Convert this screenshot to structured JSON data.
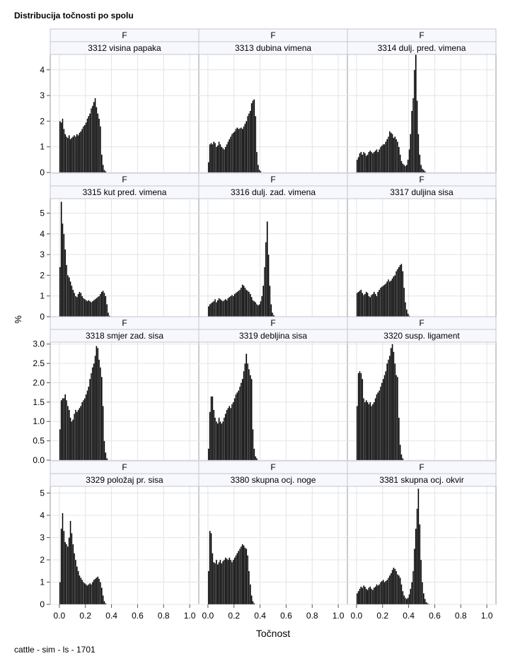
{
  "title": "Distribucija točnosti po spolu",
  "footnote": "cattle - sim - ls - 1701",
  "chart_data": {
    "type": "bar",
    "layout": "panel grid 4 rows x 3 columns, shared x axis",
    "xlabel": "Točnost",
    "ylabel": "%",
    "xlim": [
      -0.07,
      1.07
    ],
    "xticks": [
      "0.0",
      "0.2",
      "0.4",
      "0.6",
      "0.8",
      "1.0"
    ],
    "grid": true,
    "rows": [
      {
        "ylim": [
          0,
          4.6
        ],
        "yticks": [
          "0",
          "1",
          "2",
          "3",
          "4"
        ],
        "ytick_values": [
          0,
          1,
          2,
          3,
          4
        ]
      },
      {
        "ylim": [
          0,
          5.7
        ],
        "yticks": [
          "0",
          "1",
          "2",
          "3",
          "4",
          "5"
        ],
        "ytick_values": [
          0,
          1,
          2,
          3,
          4,
          5
        ]
      },
      {
        "ylim": [
          0,
          3.05
        ],
        "yticks": [
          "0.0",
          "0.5",
          "1.0",
          "1.5",
          "2.0",
          "2.5",
          "3.0"
        ],
        "ytick_values": [
          0,
          0.5,
          1,
          1.5,
          2,
          2.5,
          3
        ]
      },
      {
        "ylim": [
          0,
          5.3
        ],
        "yticks": [
          "0",
          "1",
          "2",
          "3",
          "4",
          "5"
        ],
        "ytick_values": [
          0,
          1,
          2,
          3,
          4,
          5
        ]
      }
    ],
    "panels": [
      {
        "group": "F",
        "label": "3312 visina papaka",
        "x_start": 0.0,
        "bin_width": 0.01,
        "values": [
          2.0,
          1.95,
          2.1,
          1.7,
          1.5,
          1.4,
          1.35,
          1.45,
          1.3,
          1.35,
          1.4,
          1.45,
          1.4,
          1.5,
          1.45,
          1.55,
          1.6,
          1.7,
          1.8,
          1.85,
          1.95,
          2.1,
          2.2,
          2.3,
          2.5,
          2.6,
          2.75,
          2.9,
          2.55,
          2.3,
          2.1,
          1.8,
          0.7,
          0.3,
          0.1,
          0.05
        ]
      },
      {
        "group": "F",
        "label": "3313 dubina vimena",
        "x_start": 0.0,
        "bin_width": 0.01,
        "values": [
          0.4,
          1.1,
          1.15,
          1.1,
          1.2,
          1.15,
          1.0,
          1.05,
          1.2,
          1.1,
          1.0,
          0.95,
          0.9,
          1.0,
          1.1,
          1.2,
          1.3,
          1.4,
          1.5,
          1.55,
          1.6,
          1.7,
          1.75,
          1.7,
          1.72,
          1.75,
          1.7,
          1.8,
          1.9,
          2.0,
          2.2,
          2.3,
          2.4,
          2.7,
          2.8,
          2.85,
          2.2,
          0.8,
          0.3,
          0.1,
          0.05
        ]
      },
      {
        "group": "F",
        "label": "3314 dulj. pred. vimena",
        "x_start": 0.0,
        "bin_width": 0.01,
        "values": [
          0.5,
          0.6,
          0.75,
          0.8,
          0.7,
          0.8,
          0.75,
          0.65,
          0.7,
          0.8,
          0.85,
          0.8,
          0.75,
          0.8,
          0.85,
          0.9,
          0.8,
          0.9,
          1.0,
          1.05,
          1.1,
          1.1,
          1.2,
          1.3,
          1.4,
          1.6,
          1.55,
          1.5,
          1.35,
          1.4,
          1.3,
          1.2,
          1.0,
          0.7,
          0.45,
          0.35,
          0.3,
          0.25,
          0.3,
          0.5,
          0.9,
          1.5,
          2.4,
          2.9,
          4.0,
          4.6,
          2.8,
          1.5,
          0.7,
          0.3,
          0.15,
          0.1,
          0.05
        ]
      },
      {
        "group": "F",
        "label": "3315 kut pred. vimena",
        "x_start": 0.0,
        "bin_width": 0.01,
        "values": [
          2.4,
          5.55,
          4.5,
          4.0,
          3.25,
          2.5,
          2.0,
          1.9,
          1.7,
          1.5,
          1.3,
          1.15,
          1.0,
          0.95,
          1.1,
          1.2,
          1.15,
          1.0,
          0.9,
          0.85,
          0.8,
          0.75,
          0.8,
          0.75,
          0.7,
          0.75,
          0.8,
          0.85,
          0.9,
          0.95,
          1.0,
          1.1,
          1.2,
          1.25,
          1.15,
          1.0,
          0.6,
          0.2,
          0.05
        ]
      },
      {
        "group": "F",
        "label": "3316 dulj. zad. vimena",
        "x_start": 0.0,
        "bin_width": 0.01,
        "values": [
          0.5,
          0.6,
          0.65,
          0.7,
          0.75,
          0.85,
          0.7,
          0.8,
          0.9,
          0.85,
          0.8,
          0.75,
          0.8,
          0.85,
          0.8,
          0.9,
          0.95,
          1.0,
          1.05,
          1.0,
          1.1,
          1.15,
          1.2,
          1.25,
          1.3,
          1.4,
          1.55,
          1.5,
          1.4,
          1.3,
          1.25,
          1.2,
          1.1,
          0.95,
          0.8,
          0.75,
          0.7,
          0.6,
          0.55,
          0.6,
          0.75,
          1.0,
          1.5,
          2.4,
          3.6,
          4.6,
          3.0,
          1.5,
          0.6,
          0.2,
          0.08
        ]
      },
      {
        "group": "F",
        "label": "3317 duljina sisa",
        "x_start": 0.0,
        "bin_width": 0.01,
        "values": [
          1.15,
          1.2,
          1.25,
          1.3,
          1.15,
          1.05,
          1.1,
          1.2,
          1.15,
          1.0,
          0.95,
          1.05,
          1.1,
          1.2,
          1.1,
          1.0,
          1.2,
          1.3,
          1.4,
          1.45,
          1.5,
          1.55,
          1.6,
          1.7,
          1.8,
          1.7,
          1.75,
          1.85,
          1.95,
          2.0,
          2.2,
          2.3,
          2.4,
          2.5,
          2.55,
          2.2,
          1.4,
          0.7,
          0.35,
          0.15,
          0.05
        ]
      },
      {
        "group": "F",
        "label": "3318 smjer zad. sisa",
        "x_start": 0.0,
        "bin_width": 0.01,
        "values": [
          0.8,
          1.55,
          1.6,
          1.6,
          1.7,
          1.55,
          1.4,
          1.3,
          1.1,
          1.0,
          1.05,
          1.2,
          1.3,
          1.25,
          1.3,
          1.35,
          1.4,
          1.5,
          1.55,
          1.6,
          1.7,
          1.8,
          1.9,
          2.1,
          2.25,
          2.4,
          2.5,
          2.7,
          2.95,
          2.9,
          2.6,
          2.4,
          2.15,
          1.4,
          0.5,
          0.2,
          0.05
        ]
      },
      {
        "group": "F",
        "label": "3319 debljina sisa",
        "x_start": 0.0,
        "bin_width": 0.01,
        "values": [
          0.3,
          1.25,
          1.65,
          1.65,
          1.3,
          1.1,
          1.0,
          0.95,
          1.1,
          1.0,
          0.95,
          1.0,
          1.1,
          1.2,
          1.3,
          1.35,
          1.4,
          1.35,
          1.45,
          1.5,
          1.6,
          1.7,
          1.75,
          1.8,
          1.9,
          2.0,
          2.1,
          2.3,
          2.5,
          2.75,
          2.5,
          2.35,
          2.2,
          2.1,
          0.8,
          0.3,
          0.1,
          0.05
        ]
      },
      {
        "group": "F",
        "label": "3320 susp. ligament",
        "x_start": 0.0,
        "bin_width": 0.01,
        "values": [
          1.4,
          2.25,
          2.3,
          2.25,
          2.1,
          1.6,
          1.5,
          1.55,
          1.5,
          1.45,
          1.5,
          1.4,
          1.45,
          1.5,
          1.6,
          1.7,
          1.75,
          1.8,
          1.9,
          2.0,
          2.1,
          2.2,
          2.3,
          2.5,
          2.6,
          2.7,
          2.9,
          3.0,
          2.8,
          2.5,
          2.2,
          2.15,
          1.1,
          0.4,
          0.15,
          0.05
        ]
      },
      {
        "group": "F",
        "label": "3329 položaj pr. sisa",
        "x_start": 0.0,
        "bin_width": 0.01,
        "values": [
          1.0,
          3.4,
          4.1,
          3.3,
          2.8,
          2.7,
          2.6,
          3.0,
          3.75,
          3.2,
          2.7,
          2.3,
          2.0,
          1.7,
          1.5,
          1.3,
          1.2,
          1.1,
          1.0,
          0.95,
          0.9,
          0.85,
          0.9,
          0.95,
          0.9,
          1.0,
          1.1,
          1.15,
          1.2,
          1.25,
          1.15,
          1.0,
          0.75,
          0.4,
          0.15,
          0.05
        ]
      },
      {
        "group": "F",
        "label": "3380 skupna ocj. noge",
        "x_start": 0.0,
        "bin_width": 0.01,
        "values": [
          1.5,
          3.3,
          3.2,
          2.3,
          1.9,
          1.85,
          2.0,
          1.8,
          1.9,
          2.0,
          1.85,
          1.95,
          2.0,
          2.1,
          2.05,
          2.0,
          2.1,
          2.0,
          1.9,
          2.0,
          2.1,
          2.2,
          2.3,
          2.4,
          2.5,
          2.6,
          2.7,
          2.65,
          2.55,
          2.5,
          2.2,
          1.5,
          0.9,
          0.4,
          0.15,
          0.05
        ]
      },
      {
        "group": "F",
        "label": "3381 skupna ocj. okvir",
        "x_start": 0.0,
        "bin_width": 0.01,
        "values": [
          0.5,
          0.6,
          0.7,
          0.8,
          0.75,
          0.85,
          0.8,
          0.7,
          0.65,
          0.75,
          0.8,
          0.7,
          0.65,
          0.75,
          0.8,
          0.9,
          0.85,
          0.9,
          1.0,
          1.05,
          1.1,
          1.0,
          1.05,
          1.1,
          1.2,
          1.3,
          1.4,
          1.55,
          1.65,
          1.6,
          1.5,
          1.35,
          1.3,
          1.2,
          0.9,
          0.6,
          0.4,
          0.3,
          0.25,
          0.3,
          0.45,
          0.7,
          1.0,
          1.5,
          2.5,
          3.4,
          4.3,
          5.2,
          3.6,
          2.0,
          1.0,
          0.5,
          0.25,
          0.1,
          0.05,
          0.02,
          0.01
        ]
      }
    ]
  }
}
